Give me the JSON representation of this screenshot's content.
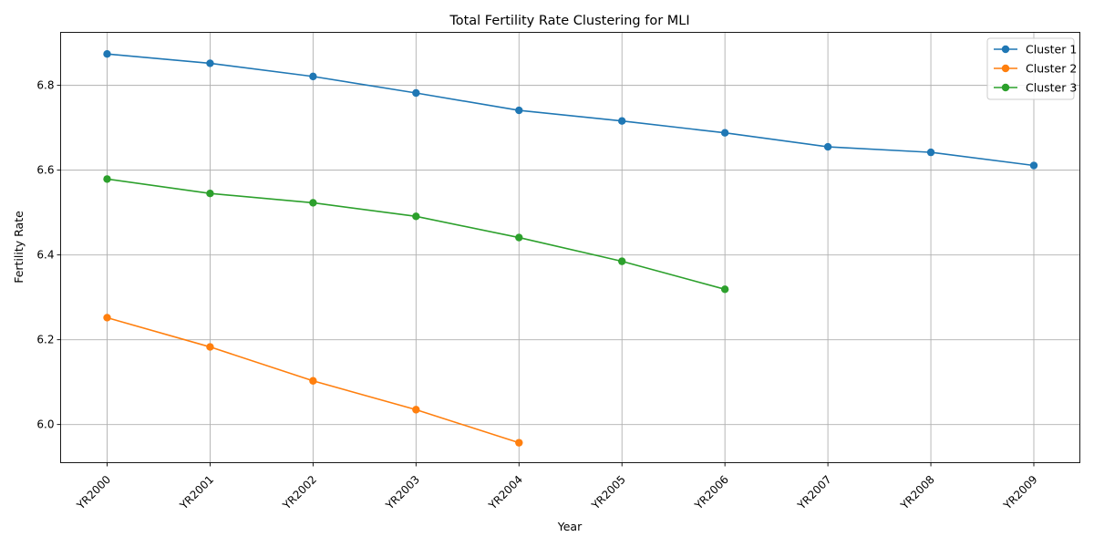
{
  "chart_data": {
    "type": "line",
    "title": "Total Fertility Rate Clustering for MLI",
    "xlabel": "Year",
    "ylabel": "Fertility Rate",
    "categories": [
      "YR2000",
      "YR2001",
      "YR2002",
      "YR2003",
      "YR2004",
      "YR2005",
      "YR2006",
      "YR2007",
      "YR2008",
      "YR2009"
    ],
    "ylim": [
      5.91,
      6.925
    ],
    "yticks": [
      6.0,
      6.2,
      6.4,
      6.6,
      6.8
    ],
    "ytick_labels": [
      "6.0",
      "6.2",
      "6.4",
      "6.6",
      "6.8"
    ],
    "grid": true,
    "legend_position": "top-right",
    "series": [
      {
        "name": "Cluster 1",
        "color": "#1f77b4",
        "x": [
          "YR2000",
          "YR2001",
          "YR2002",
          "YR2003",
          "YR2004",
          "YR2005",
          "YR2006",
          "YR2007",
          "YR2008",
          "YR2009"
        ],
        "values": [
          6.874,
          6.852,
          6.821,
          6.782,
          6.741,
          6.716,
          6.688,
          6.655,
          6.642,
          6.611
        ]
      },
      {
        "name": "Cluster 2",
        "color": "#ff7f0e",
        "x": [
          "YR2000",
          "YR2001",
          "YR2002",
          "YR2003",
          "YR2004"
        ],
        "values": [
          6.252,
          6.183,
          6.103,
          6.035,
          5.957
        ]
      },
      {
        "name": "Cluster 3",
        "color": "#2ca02c",
        "x": [
          "YR2000",
          "YR2001",
          "YR2002",
          "YR2003",
          "YR2004",
          "YR2005",
          "YR2006"
        ],
        "values": [
          6.579,
          6.545,
          6.523,
          6.491,
          6.441,
          6.385,
          6.319
        ]
      }
    ]
  }
}
